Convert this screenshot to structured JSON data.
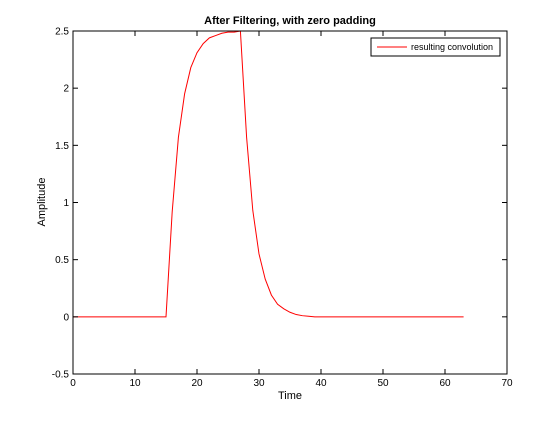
{
  "chart_data": {
    "type": "line",
    "title": "After Filtering, with zero padding",
    "xlabel": "Time",
    "ylabel": "Amplitude",
    "xlim": [
      0,
      70
    ],
    "ylim": [
      -0.5,
      2.5
    ],
    "xticks": [
      0,
      10,
      20,
      30,
      40,
      50,
      60,
      70
    ],
    "yticks": [
      -0.5,
      0,
      0.5,
      1,
      1.5,
      2,
      2.5
    ],
    "xtick_labels": [
      "0",
      "10",
      "20",
      "30",
      "40",
      "50",
      "60",
      "70"
    ],
    "ytick_labels": [
      "-0.5",
      "0",
      "0.5",
      "1",
      "1.5",
      "2",
      "2.5"
    ],
    "grid": false,
    "legend_position": "top-right",
    "series": [
      {
        "name": "resulting convolution",
        "color": "#ff0000",
        "x": [
          0,
          1,
          2,
          3,
          4,
          5,
          6,
          7,
          8,
          9,
          10,
          11,
          12,
          13,
          14,
          15,
          16,
          17,
          18,
          19,
          20,
          21,
          22,
          23,
          24,
          25,
          26,
          27,
          28,
          29,
          30,
          31,
          32,
          33,
          34,
          35,
          36,
          37,
          38,
          39,
          40,
          41,
          42,
          43,
          44,
          45,
          46,
          47,
          48,
          49,
          50,
          51,
          52,
          53,
          54,
          55,
          56,
          57,
          58,
          59,
          60,
          61,
          62,
          63
        ],
        "y": [
          0,
          0,
          0,
          0,
          0,
          0,
          0,
          0,
          0,
          0,
          0,
          0,
          0,
          0,
          0,
          0,
          0.92,
          1.57,
          1.95,
          2.18,
          2.31,
          2.39,
          2.44,
          2.46,
          2.48,
          2.49,
          2.49,
          2.5,
          1.57,
          0.93,
          0.55,
          0.33,
          0.19,
          0.11,
          0.07,
          0.04,
          0.02,
          0.01,
          0.005,
          0,
          0,
          0,
          0,
          0,
          0,
          0,
          0,
          0,
          0,
          0,
          0,
          0,
          0,
          0,
          0,
          0,
          0,
          0,
          0,
          0,
          0,
          0,
          0,
          0
        ]
      }
    ]
  }
}
